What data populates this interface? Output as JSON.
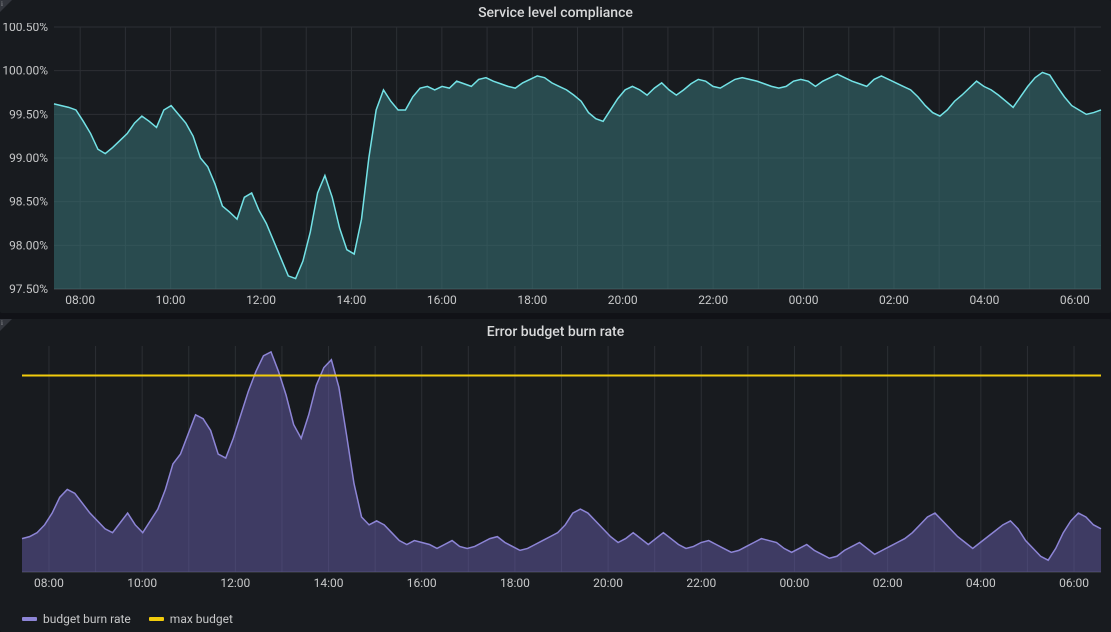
{
  "panel1": {
    "title": "Service level compliance",
    "type": "area",
    "line_color": "#73e2e6",
    "fill_color": "rgba(56,115,119,0.55)",
    "grid_color": "#2c2f34",
    "background_color": "#181b1f",
    "y": {
      "min": 97.5,
      "max": 100.5,
      "ticks": [
        97.5,
        98.0,
        98.5,
        99.0,
        99.5,
        100.0,
        100.5
      ],
      "tick_labels": [
        "97.50%",
        "98.00%",
        "98.50%",
        "99.00%",
        "99.50%",
        "100.00%",
        "100.50%"
      ],
      "label_fontsize": 12
    },
    "x": {
      "ticks": [
        "08:00",
        "10:00",
        "12:00",
        "14:00",
        "16:00",
        "18:00",
        "20:00",
        "22:00",
        "00:00",
        "02:00",
        "04:00",
        "06:00"
      ],
      "label_fontsize": 12
    },
    "series": {
      "xcount": 144,
      "values": [
        99.62,
        99.6,
        99.58,
        99.55,
        99.42,
        99.28,
        99.1,
        99.05,
        99.12,
        99.2,
        99.28,
        99.4,
        99.48,
        99.42,
        99.35,
        99.55,
        99.6,
        99.5,
        99.4,
        99.25,
        99.0,
        98.9,
        98.7,
        98.45,
        98.38,
        98.3,
        98.55,
        98.6,
        98.4,
        98.25,
        98.05,
        97.85,
        97.65,
        97.62,
        97.82,
        98.15,
        98.6,
        98.8,
        98.55,
        98.2,
        97.95,
        97.9,
        98.3,
        99.0,
        99.55,
        99.78,
        99.65,
        99.55,
        99.55,
        99.7,
        99.8,
        99.82,
        99.78,
        99.82,
        99.8,
        99.88,
        99.85,
        99.82,
        99.9,
        99.92,
        99.88,
        99.85,
        99.82,
        99.8,
        99.86,
        99.9,
        99.94,
        99.92,
        99.86,
        99.82,
        99.78,
        99.72,
        99.65,
        99.52,
        99.45,
        99.42,
        99.55,
        99.68,
        99.78,
        99.82,
        99.78,
        99.72,
        99.8,
        99.86,
        99.78,
        99.72,
        99.78,
        99.85,
        99.9,
        99.88,
        99.82,
        99.8,
        99.85,
        99.9,
        99.92,
        99.9,
        99.88,
        99.85,
        99.82,
        99.8,
        99.82,
        99.88,
        99.9,
        99.88,
        99.82,
        99.88,
        99.92,
        99.96,
        99.92,
        99.88,
        99.85,
        99.82,
        99.9,
        99.94,
        99.9,
        99.86,
        99.82,
        99.78,
        99.7,
        99.6,
        99.52,
        99.48,
        99.55,
        99.65,
        99.72,
        99.8,
        99.88,
        99.82,
        99.78,
        99.72,
        99.65,
        99.58,
        99.7,
        99.82,
        99.92,
        99.98,
        99.95,
        99.82,
        99.7,
        99.6,
        99.55,
        99.5,
        99.52,
        99.55
      ]
    }
  },
  "panel2": {
    "title": "Error budget burn rate",
    "type": "area",
    "burn_color": "#8d85d6",
    "burn_fill": "rgba(100,92,168,0.5)",
    "max_color": "#f2cc0c",
    "grid_color": "#2c2f34",
    "background_color": "#181b1f",
    "y": {
      "min": 0,
      "max": 1.15,
      "max_budget_value": 1.0,
      "show_y_labels": false
    },
    "x": {
      "ticks": [
        "08:00",
        "10:00",
        "12:00",
        "14:00",
        "16:00",
        "18:00",
        "20:00",
        "22:00",
        "00:00",
        "02:00",
        "04:00",
        "06:00"
      ],
      "label_fontsize": 12
    },
    "max_budget": {
      "xcount": 144,
      "value": 1.0
    },
    "burn": {
      "xcount": 144,
      "values": [
        0.17,
        0.18,
        0.2,
        0.24,
        0.3,
        0.38,
        0.42,
        0.4,
        0.35,
        0.3,
        0.26,
        0.22,
        0.2,
        0.25,
        0.3,
        0.24,
        0.2,
        0.26,
        0.32,
        0.42,
        0.55,
        0.6,
        0.7,
        0.8,
        0.78,
        0.72,
        0.6,
        0.58,
        0.68,
        0.8,
        0.92,
        1.02,
        1.1,
        1.12,
        1.02,
        0.9,
        0.75,
        0.68,
        0.8,
        0.95,
        1.04,
        1.08,
        0.94,
        0.7,
        0.45,
        0.28,
        0.24,
        0.26,
        0.24,
        0.2,
        0.16,
        0.14,
        0.16,
        0.15,
        0.14,
        0.12,
        0.14,
        0.16,
        0.13,
        0.12,
        0.13,
        0.15,
        0.17,
        0.18,
        0.15,
        0.13,
        0.11,
        0.12,
        0.14,
        0.16,
        0.18,
        0.2,
        0.24,
        0.3,
        0.32,
        0.3,
        0.26,
        0.22,
        0.18,
        0.15,
        0.17,
        0.2,
        0.17,
        0.14,
        0.17,
        0.2,
        0.17,
        0.14,
        0.12,
        0.13,
        0.15,
        0.16,
        0.14,
        0.12,
        0.1,
        0.11,
        0.13,
        0.15,
        0.17,
        0.16,
        0.15,
        0.12,
        0.1,
        0.12,
        0.14,
        0.11,
        0.09,
        0.07,
        0.08,
        0.11,
        0.13,
        0.15,
        0.12,
        0.09,
        0.11,
        0.13,
        0.15,
        0.17,
        0.2,
        0.24,
        0.28,
        0.3,
        0.26,
        0.22,
        0.18,
        0.15,
        0.12,
        0.15,
        0.18,
        0.21,
        0.24,
        0.26,
        0.22,
        0.16,
        0.12,
        0.08,
        0.06,
        0.12,
        0.2,
        0.26,
        0.3,
        0.28,
        0.24,
        0.22
      ]
    },
    "legend": [
      {
        "label": "budget burn rate",
        "color": "#8d85d6"
      },
      {
        "label": "max budget",
        "color": "#f2cc0c"
      }
    ]
  }
}
